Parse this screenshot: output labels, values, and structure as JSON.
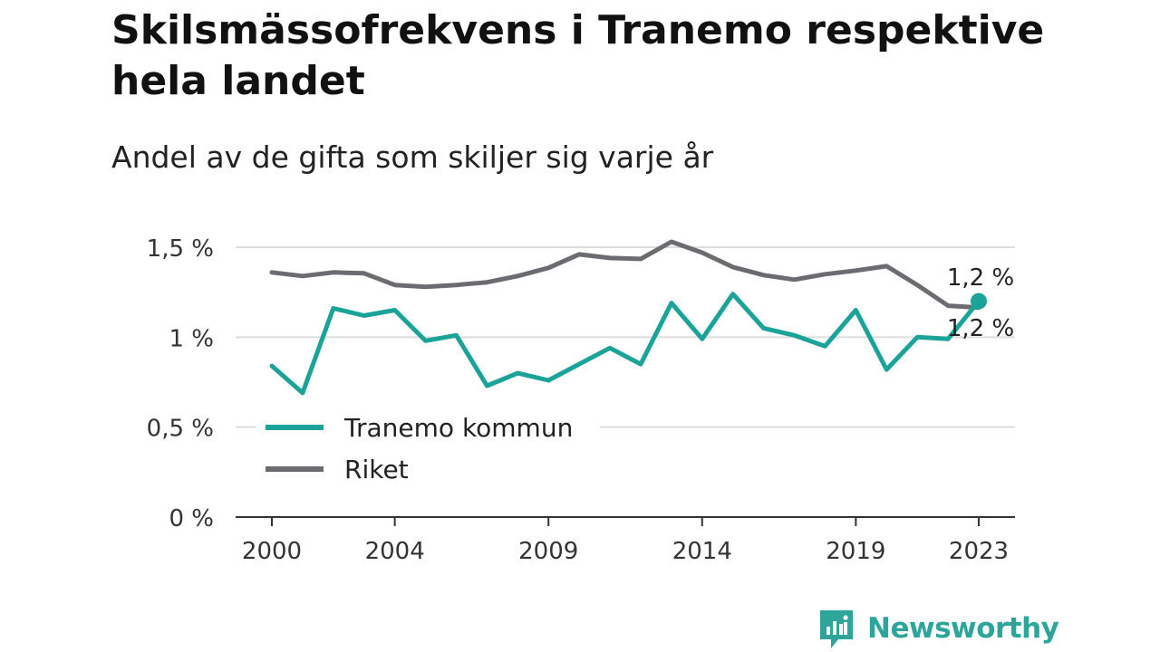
{
  "title": "Skilsmässofrekvens i Tranemo respektive hela landet",
  "subtitle": "Andel av de gifta som skiljer sig varje år",
  "brand": "Newsworthy",
  "colors": {
    "tranemo": "#1ba39a",
    "riket": "#6b6b70",
    "grid": "#dddddd",
    "axis": "#333333",
    "brand": "#2ea59a"
  },
  "chart_data": {
    "type": "line",
    "x": [
      2000,
      2001,
      2002,
      2003,
      2004,
      2005,
      2006,
      2007,
      2008,
      2009,
      2010,
      2011,
      2012,
      2013,
      2014,
      2015,
      2016,
      2017,
      2018,
      2019,
      2020,
      2021,
      2022,
      2023
    ],
    "x_ticks": [
      2000,
      2004,
      2009,
      2014,
      2019,
      2023
    ],
    "y_ticks": [
      0,
      0.5,
      1,
      1.5
    ],
    "y_tick_labels": [
      "0 %",
      "0,5 %",
      "1 %",
      "1,5 %"
    ],
    "ylim": [
      0,
      1.5
    ],
    "grid": true,
    "legend_position": "lower-left",
    "series": [
      {
        "name": "Tranemo kommun",
        "color": "#1ba39a",
        "end_label": "1,2 %",
        "values": [
          0.84,
          0.69,
          1.16,
          1.12,
          1.15,
          0.98,
          1.01,
          0.73,
          0.8,
          0.76,
          0.85,
          0.94,
          0.85,
          1.19,
          0.99,
          1.24,
          1.05,
          1.01,
          0.95,
          1.15,
          0.82,
          1.0,
          0.99,
          1.2
        ]
      },
      {
        "name": "Riket",
        "color": "#6b6b70",
        "end_label": "1,2 %",
        "values": [
          1.36,
          1.34,
          1.36,
          1.355,
          1.29,
          1.28,
          1.29,
          1.305,
          1.34,
          1.385,
          1.46,
          1.44,
          1.435,
          1.53,
          1.47,
          1.39,
          1.345,
          1.32,
          1.35,
          1.37,
          1.395,
          1.29,
          1.175,
          1.165
        ]
      }
    ]
  }
}
